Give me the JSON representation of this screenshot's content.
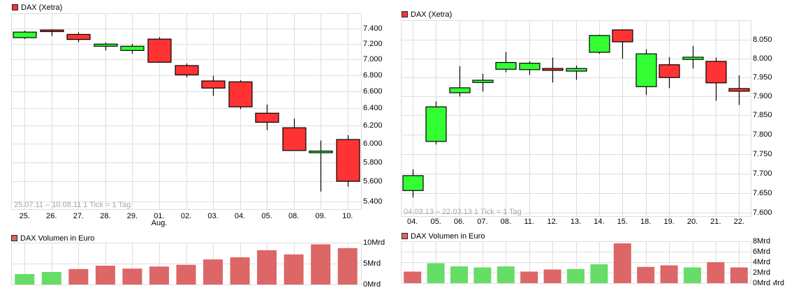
{
  "panels": {
    "left": {
      "price_title": "DAX (Xetra)",
      "info": "25.07.11 – 10.08.11   1 Tick = 1 Tag",
      "volume_title": "DAX Volumen in Euro"
    },
    "right": {
      "price_title": "DAX (Xetra)",
      "info": "04.03.13 – 22.03.13   1 Tick = 1 Tag",
      "volume_title": "DAX Volumen in Euro",
      "clipped_axis_label": "Mrd"
    }
  },
  "colors": {
    "up": "#33FF33",
    "down": "#FF3333",
    "volume_up": "#66DD66",
    "volume_down": "#DD6666",
    "grid": "#DDDDDD",
    "legend_price": "#FF3333",
    "legend_volume": "#DD6666",
    "info_text": "#A8A8A8"
  },
  "chart_data": [
    {
      "id": "left-price",
      "type": "candlestick",
      "title": "DAX (Xetra)",
      "annotation": "25.07.11 – 10.08.11   1 Tick = 1 Tag",
      "x_labels": [
        "25.",
        "26.",
        "27.",
        "28.",
        "29.",
        "01.",
        "02.",
        "03.",
        "04.",
        "05.",
        "08.",
        "09.",
        "10."
      ],
      "x_sublabels": [
        "",
        "",
        "",
        "",
        "",
        "Aug.",
        "",
        "",
        "",
        "",
        "",
        "",
        ""
      ],
      "y_scale": "log",
      "ylim": [
        5325,
        7610
      ],
      "y_ticks": [
        7400,
        7200,
        7000,
        6800,
        6600,
        6400,
        6200,
        6000,
        5800,
        5600,
        5400
      ],
      "y_tick_labels": [
        "7.400",
        "7.200",
        "7.000",
        "6.800",
        "6.600",
        "6.400",
        "6.200",
        "6.000",
        "5.800",
        "5.600",
        "5.400"
      ],
      "grid": true,
      "series": [
        {
          "name": "DAX (Xetra)",
          "fields": [
            "open",
            "high",
            "low",
            "close"
          ],
          "ohlc": [
            [
              7279,
              7372,
              7262,
              7353
            ],
            [
              7381,
              7390,
              7300,
              7360
            ],
            [
              7322,
              7350,
              7218,
              7255
            ],
            [
              7166,
              7212,
              7111,
              7194
            ],
            [
              7111,
              7195,
              7068,
              7166
            ],
            [
              7260,
              7286,
              6955,
              6960
            ],
            [
              6918,
              6945,
              6770,
              6802
            ],
            [
              6727,
              6790,
              6545,
              6640
            ],
            [
              6716,
              6735,
              6390,
              6417
            ],
            [
              6343,
              6443,
              6150,
              6239
            ],
            [
              6177,
              6281,
              5923,
              5926
            ],
            [
              5902,
              6035,
              5499,
              5920
            ],
            [
              6046,
              6095,
              5549,
              5603
            ]
          ]
        }
      ]
    },
    {
      "id": "left-volume",
      "type": "bar",
      "title": "DAX Volumen in Euro",
      "categories": [
        "25.",
        "26.",
        "27.",
        "28.",
        "29.",
        "01.",
        "02.",
        "03.",
        "04.",
        "05.",
        "08.",
        "09.",
        "10."
      ],
      "values": [
        2.5,
        3.0,
        3.7,
        4.5,
        3.8,
        4.3,
        4.7,
        6.0,
        6.5,
        8.2,
        7.2,
        9.6,
        8.7
      ],
      "directions": [
        "up",
        "up",
        "down",
        "down",
        "down",
        "down",
        "down",
        "down",
        "down",
        "down",
        "down",
        "down",
        "down"
      ],
      "unit": "Mrd",
      "ylim": [
        0,
        10
      ],
      "y_ticks": [
        10,
        5,
        0
      ],
      "y_tick_labels": [
        "10Mrd",
        "5Mrd",
        "0Mrd"
      ],
      "grid": true
    },
    {
      "id": "right-price",
      "type": "candlestick",
      "title": "DAX (Xetra)",
      "annotation": "04.03.13 – 22.03.13   1 Tick = 1 Tag",
      "x_labels": [
        "04.",
        "05.",
        "06.",
        "07.",
        "08.",
        "11.",
        "12.",
        "13.",
        "14.",
        "15.",
        "18.",
        "19.",
        "20.",
        "21.",
        "22."
      ],
      "x_sublabels": [],
      "y_scale": "log",
      "ylim": [
        7591,
        8102
      ],
      "y_ticks": [
        8050,
        8000,
        7950,
        7900,
        7850,
        7800,
        7750,
        7700,
        7650,
        7600
      ],
      "y_tick_labels": [
        "8.050",
        "8.000",
        "7.950",
        "7.900",
        "7.850",
        "7.800",
        "7.750",
        "7.700",
        "7.650",
        "7.600"
      ],
      "grid": true,
      "series": [
        {
          "name": "DAX (Xetra)",
          "fields": [
            "open",
            "high",
            "low",
            "close"
          ],
          "ohlc": [
            [
              7656,
              7710,
              7638,
              7694
            ],
            [
              7782,
              7886,
              7774,
              7872
            ],
            [
              7909,
              7979,
              7899,
              7922
            ],
            [
              7936,
              7959,
              7912,
              7942
            ],
            [
              7971,
              8017,
              7963,
              7989
            ],
            [
              7970,
              7992,
              7956,
              7987
            ],
            [
              7973,
              8002,
              7936,
              7968
            ],
            [
              7966,
              7981,
              7943,
              7973
            ],
            [
              8016,
              8063,
              8012,
              8061
            ],
            [
              8076,
              8076,
              7999,
              8044
            ],
            [
              7925,
              8024,
              7903,
              8012
            ],
            [
              7983,
              8003,
              7921,
              7949
            ],
            [
              7997,
              8033,
              7973,
              8003
            ],
            [
              7992,
              8002,
              7888,
              7935
            ],
            [
              7920,
              7955,
              7877,
              7913
            ]
          ]
        }
      ]
    },
    {
      "id": "right-volume",
      "type": "bar",
      "title": "DAX Volumen in Euro",
      "categories": [
        "04.",
        "05.",
        "06.",
        "07.",
        "08.",
        "11.",
        "12.",
        "13.",
        "14.",
        "15.",
        "18.",
        "19.",
        "20.",
        "21.",
        "22."
      ],
      "values": [
        2.2,
        3.8,
        3.2,
        3.0,
        3.2,
        2.2,
        2.6,
        2.7,
        3.6,
        7.6,
        3.1,
        3.4,
        3.0,
        4.0,
        3.0
      ],
      "directions": [
        "down",
        "up",
        "up",
        "up",
        "up",
        "down",
        "down",
        "up",
        "up",
        "down",
        "down",
        "down",
        "up",
        "down",
        "down"
      ],
      "unit": "Mrd",
      "ylim": [
        0,
        8
      ],
      "y_ticks": [
        8,
        6,
        4,
        2,
        0
      ],
      "y_tick_labels": [
        "8Mrd",
        "6Mrd",
        "4Mrd",
        "2Mrd",
        "0Mrd"
      ],
      "grid": true
    }
  ]
}
